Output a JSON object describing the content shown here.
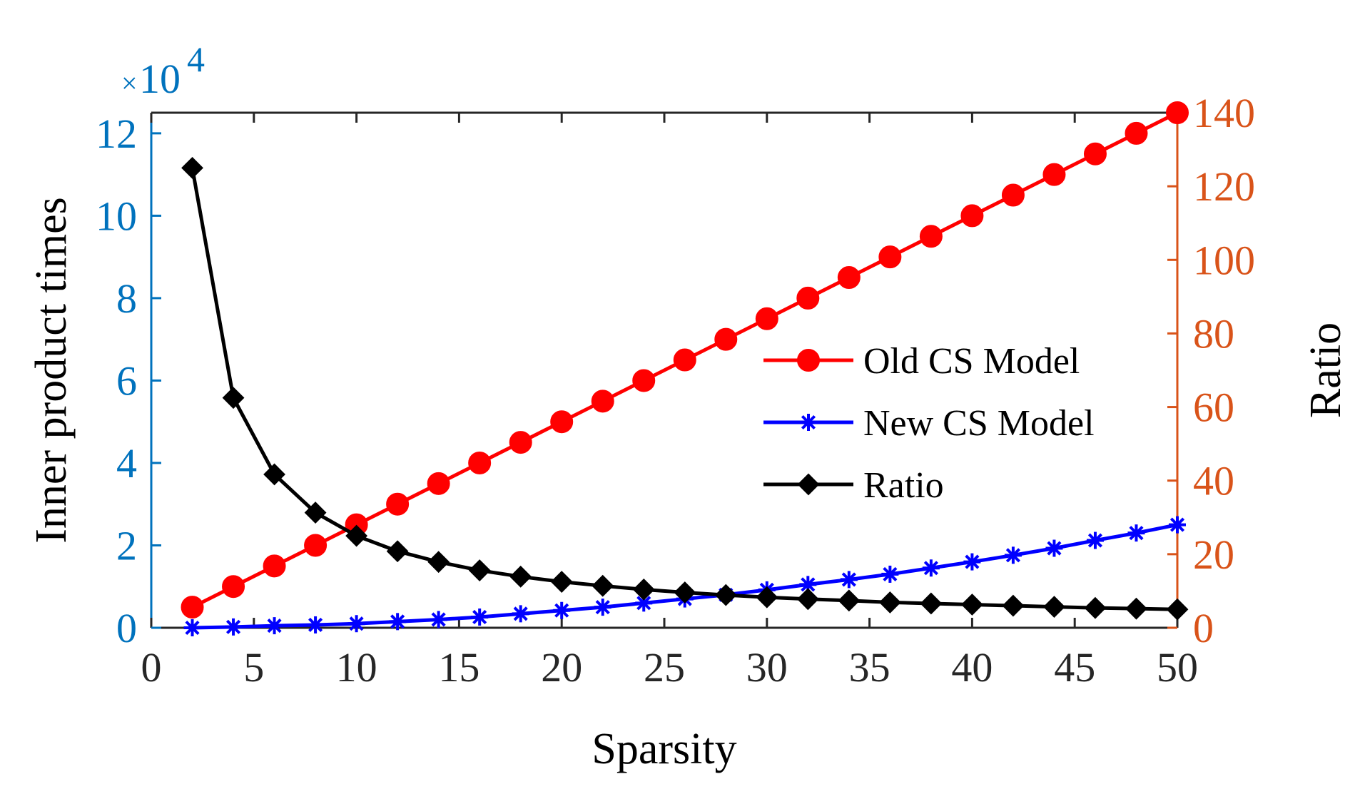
{
  "chart_data": {
    "type": "line",
    "xlabel": "Sparsity",
    "ylabel_left": "Inner product times",
    "ylabel_right": "Ratio",
    "left_axis_exponent": {
      "base": "10",
      "power": "4",
      "prefix": "×"
    },
    "xlim": [
      0,
      50
    ],
    "ylim_left": [
      0,
      12.5
    ],
    "ylim_right": [
      0,
      140
    ],
    "xticks": [
      "0",
      "5",
      "10",
      "15",
      "20",
      "25",
      "30",
      "35",
      "40",
      "45",
      "50"
    ],
    "yticks_left": [
      "0",
      "2",
      "4",
      "6",
      "8",
      "10",
      "12"
    ],
    "yticks_right": [
      "0",
      "20",
      "40",
      "60",
      "80",
      "100",
      "120",
      "140"
    ],
    "colors": {
      "left_axis": "#0072BD",
      "right_axis": "#D95319",
      "axis_dark": "#262626"
    },
    "x": [
      2,
      4,
      6,
      8,
      10,
      12,
      14,
      16,
      18,
      20,
      22,
      24,
      26,
      28,
      30,
      32,
      34,
      36,
      38,
      40,
      42,
      44,
      46,
      48,
      50
    ],
    "series": [
      {
        "name": "Old CS Model",
        "axis": "left",
        "color": "#FF0000",
        "marker": "circle",
        "values": [
          0.5,
          1.0,
          1.5,
          2.0,
          2.5,
          3.0,
          3.5,
          4.0,
          4.5,
          5.0,
          5.5,
          6.0,
          6.5,
          7.0,
          7.5,
          8.0,
          8.5,
          9.0,
          9.5,
          10.0,
          10.5,
          11.0,
          11.5,
          12.0,
          12.5
        ]
      },
      {
        "name": "New CS Model",
        "axis": "left",
        "color": "#0000FF",
        "marker": "asterisk",
        "values": [
          0.0,
          0.02,
          0.05,
          0.07,
          0.1,
          0.15,
          0.2,
          0.26,
          0.34,
          0.42,
          0.5,
          0.6,
          0.7,
          0.8,
          0.92,
          1.05,
          1.17,
          1.3,
          1.45,
          1.6,
          1.76,
          1.93,
          2.12,
          2.3,
          2.5
        ]
      },
      {
        "name": "Ratio",
        "axis": "right",
        "color": "#000000",
        "marker": "diamond",
        "values": [
          125,
          62.5,
          41.7,
          31.3,
          25.0,
          20.8,
          17.9,
          15.6,
          13.9,
          12.5,
          11.4,
          10.4,
          9.6,
          8.9,
          8.3,
          7.8,
          7.4,
          6.9,
          6.6,
          6.3,
          6.0,
          5.7,
          5.4,
          5.2,
          5.0
        ]
      }
    ],
    "legend_position": "center-right"
  }
}
